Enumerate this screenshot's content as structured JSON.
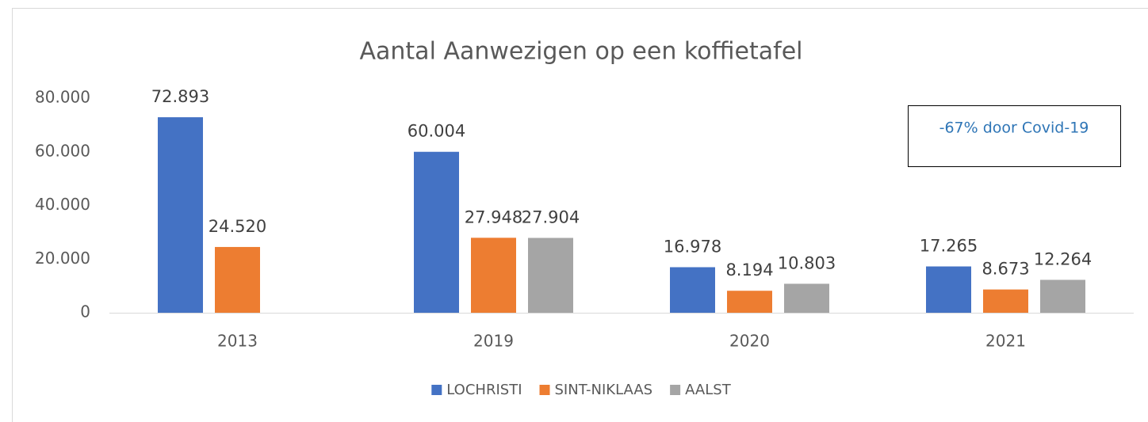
{
  "chart_data": {
    "type": "bar",
    "title": "Aantal Aanwezigen op een koffietafel",
    "categories": [
      "2013",
      "2019",
      "2020",
      "2021"
    ],
    "series": [
      {
        "name": "LOCHRISTI",
        "color": "#4472c4",
        "values": [
          72893,
          60004,
          16978,
          17265
        ],
        "value_labels": [
          "72.893",
          "60.004",
          "16.978",
          "17.265"
        ]
      },
      {
        "name": "SINT-NIKLAAS",
        "color": "#ed7d31",
        "values": [
          24520,
          27948,
          8194,
          8673
        ],
        "value_labels": [
          "24.520",
          "27.948",
          "8.194",
          "8.673"
        ]
      },
      {
        "name": "AALST",
        "color": "#a5a5a5",
        "values": [
          null,
          27904,
          10803,
          12264
        ],
        "value_labels": [
          null,
          "27.904",
          "10.803",
          "12.264"
        ]
      }
    ],
    "ylim": [
      0,
      80000
    ],
    "yticks": [
      0,
      {
        "value": 20000,
        "label": "20.000"
      },
      {
        "value": 40000,
        "label": "40.000"
      },
      {
        "value": 60000,
        "label": "60.000"
      },
      {
        "value": 80000,
        "label": "80.000"
      }
    ],
    "grid": false,
    "legend": "bottom",
    "annotation": "-67% door Covid-19"
  }
}
